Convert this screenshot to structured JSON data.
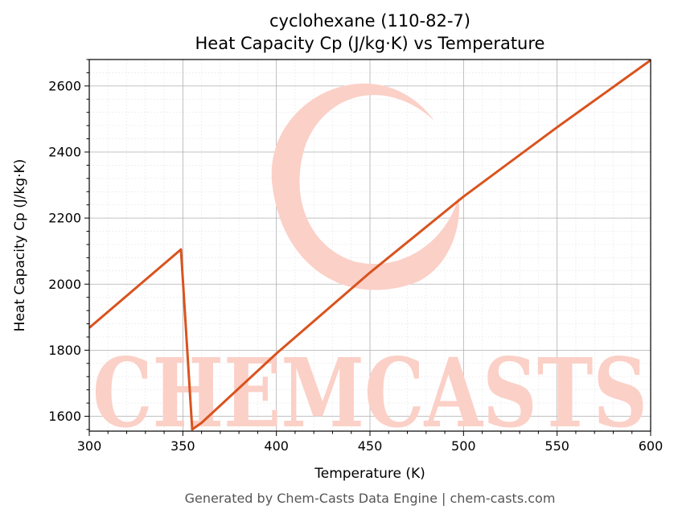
{
  "chart_data": {
    "type": "line",
    "title": "cyclohexane (110-82-7)",
    "subtitle": "Heat Capacity Cp (J/kg·K) vs Temperature",
    "xlabel": "Temperature (K)",
    "ylabel": "Heat Capacity Cp (J/kg·K)",
    "xlim": [
      300,
      600
    ],
    "ylim": [
      1555,
      2680
    ],
    "xticks": [
      300,
      350,
      400,
      450,
      500,
      550,
      600
    ],
    "yticks": [
      1600,
      1800,
      2000,
      2200,
      2400,
      2600
    ],
    "grid": true,
    "line_color": "#d9531e",
    "series": [
      {
        "x": [
          300,
          349,
          355,
          360,
          400,
          450,
          500,
          550,
          600
        ],
        "values": [
          1868,
          2105,
          1560,
          1580,
          1790,
          2035,
          2265,
          2475,
          2678
        ]
      }
    ]
  },
  "watermark": {
    "text": "CHEMCASTS",
    "color": "#fbd0c7"
  },
  "footer": "Generated by Chem-Casts Data Engine | chem-casts.com"
}
